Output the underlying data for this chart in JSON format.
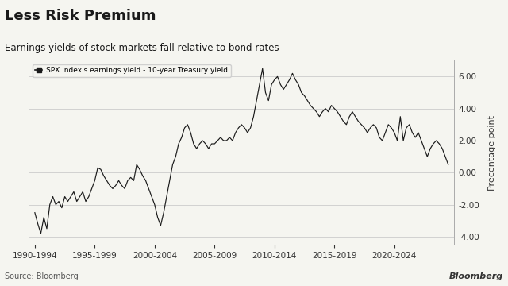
{
  "title": "Less Risk Premium",
  "subtitle": "Earnings yields of stock markets fall relative to bond rates",
  "legend_label": "SPX Index's earnings yield - 10-year Treasury yield",
  "ylabel": "Precentage point",
  "source": "Source: Bloomberg",
  "watermark": "Bloomberg",
  "line_color": "#1a1a1a",
  "background_color": "#f5f5f0",
  "grid_color": "#cccccc",
  "ylim": [
    -4.5,
    7.0
  ],
  "yticks": [
    -4.0,
    -2.0,
    0.0,
    2.0,
    4.0,
    6.0
  ],
  "xtick_labels": [
    "1990-1994",
    "1995-1999",
    "2000-2004",
    "2005-2009",
    "2010-2014",
    "2015-2019",
    "2020-2024"
  ],
  "data_years": [
    1990.0,
    1990.25,
    1990.5,
    1990.75,
    1991.0,
    1991.25,
    1991.5,
    1991.75,
    1992.0,
    1992.25,
    1992.5,
    1992.75,
    1993.0,
    1993.25,
    1993.5,
    1993.75,
    1994.0,
    1994.25,
    1994.5,
    1994.75,
    1995.0,
    1995.25,
    1995.5,
    1995.75,
    1996.0,
    1996.25,
    1996.5,
    1996.75,
    1997.0,
    1997.25,
    1997.5,
    1997.75,
    1998.0,
    1998.25,
    1998.5,
    1998.75,
    1999.0,
    1999.25,
    1999.5,
    1999.75,
    2000.0,
    2000.25,
    2000.5,
    2000.75,
    2001.0,
    2001.25,
    2001.5,
    2001.75,
    2002.0,
    2002.25,
    2002.5,
    2002.75,
    2003.0,
    2003.25,
    2003.5,
    2003.75,
    2004.0,
    2004.25,
    2004.5,
    2004.75,
    2005.0,
    2005.25,
    2005.5,
    2005.75,
    2006.0,
    2006.25,
    2006.5,
    2006.75,
    2007.0,
    2007.25,
    2007.5,
    2007.75,
    2008.0,
    2008.25,
    2008.5,
    2008.75,
    2009.0,
    2009.25,
    2009.5,
    2009.75,
    2010.0,
    2010.25,
    2010.5,
    2010.75,
    2011.0,
    2011.25,
    2011.5,
    2011.75,
    2012.0,
    2012.25,
    2012.5,
    2012.75,
    2013.0,
    2013.25,
    2013.5,
    2013.75,
    2014.0,
    2014.25,
    2014.5,
    2014.75,
    2015.0,
    2015.25,
    2015.5,
    2015.75,
    2016.0,
    2016.25,
    2016.5,
    2016.75,
    2017.0,
    2017.25,
    2017.5,
    2017.75,
    2018.0,
    2018.25,
    2018.5,
    2018.75,
    2019.0,
    2019.25,
    2019.5,
    2019.75,
    2020.0,
    2020.25,
    2020.5,
    2020.75,
    2021.0,
    2021.25,
    2021.5,
    2021.75,
    2022.0,
    2022.25,
    2022.5,
    2022.75,
    2023.0,
    2023.25,
    2023.5,
    2023.75,
    2024.0,
    2024.25,
    2024.5
  ],
  "data_values": [
    -2.5,
    -3.2,
    -3.8,
    -2.8,
    -3.5,
    -2.0,
    -1.5,
    -2.0,
    -1.8,
    -2.2,
    -1.5,
    -1.8,
    -1.5,
    -1.2,
    -1.8,
    -1.5,
    -1.2,
    -1.8,
    -1.5,
    -1.0,
    -0.5,
    0.3,
    0.2,
    -0.2,
    -0.5,
    -0.8,
    -1.0,
    -0.8,
    -0.5,
    -0.8,
    -1.0,
    -0.5,
    -0.3,
    -0.5,
    0.5,
    0.2,
    -0.2,
    -0.5,
    -1.0,
    -1.5,
    -2.0,
    -2.8,
    -3.3,
    -2.5,
    -1.5,
    -0.5,
    0.5,
    1.0,
    1.8,
    2.2,
    2.8,
    3.0,
    2.5,
    1.8,
    1.5,
    1.8,
    2.0,
    1.8,
    1.5,
    1.8,
    1.8,
    2.0,
    2.2,
    2.0,
    2.0,
    2.2,
    2.0,
    2.5,
    2.8,
    3.0,
    2.8,
    2.5,
    2.8,
    3.5,
    4.5,
    5.5,
    6.5,
    5.0,
    4.5,
    5.5,
    5.8,
    6.0,
    5.5,
    5.2,
    5.5,
    5.8,
    6.2,
    5.8,
    5.5,
    5.0,
    4.8,
    4.5,
    4.2,
    4.0,
    3.8,
    3.5,
    3.8,
    4.0,
    3.8,
    4.2,
    4.0,
    3.8,
    3.5,
    3.2,
    3.0,
    3.5,
    3.8,
    3.5,
    3.2,
    3.0,
    2.8,
    2.5,
    2.8,
    3.0,
    2.8,
    2.2,
    2.0,
    2.5,
    3.0,
    2.8,
    2.5,
    2.0,
    3.5,
    2.0,
    2.8,
    3.0,
    2.5,
    2.2,
    2.5,
    2.0,
    1.5,
    1.0,
    1.5,
    1.8,
    2.0,
    1.8,
    1.5,
    1.0,
    0.5
  ]
}
